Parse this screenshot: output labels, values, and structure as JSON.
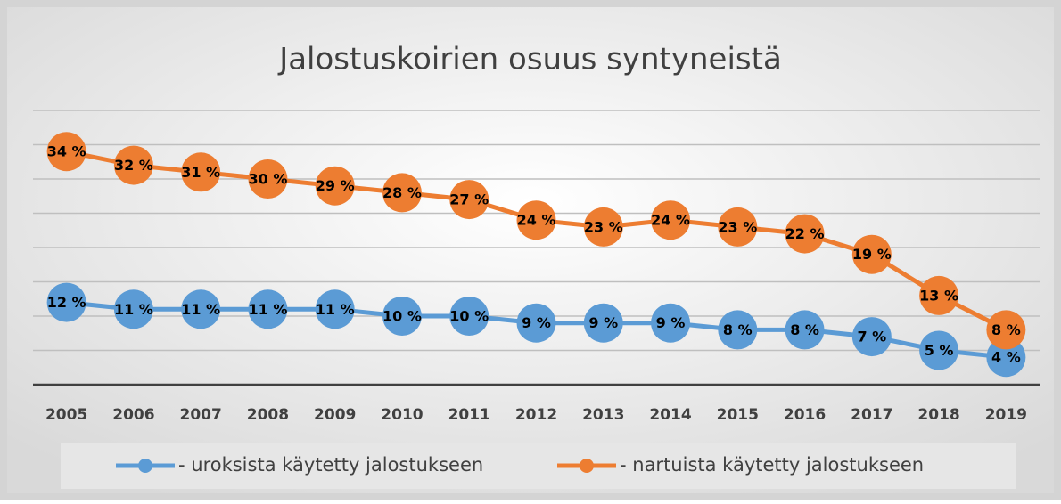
{
  "chart_data": {
    "type": "line",
    "title": "Jalostuskoirien osuus syntyneistä",
    "categories": [
      "2005",
      "2006",
      "2007",
      "2008",
      "2009",
      "2010",
      "2011",
      "2012",
      "2013",
      "2014",
      "2015",
      "2016",
      "2017",
      "2018",
      "2019"
    ],
    "series": [
      {
        "name": "- uroksista käytetty jalostukseen",
        "color": "#5b9bd5",
        "values": [
          12,
          11,
          11,
          11,
          11,
          10,
          10,
          9,
          9,
          9,
          8,
          8,
          7,
          5,
          4
        ],
        "value_labels": [
          "12 %",
          "11 %",
          "11 %",
          "11 %",
          "11 %",
          "10 %",
          "10 %",
          "9 %",
          "9 %",
          "9 %",
          "8 %",
          "8 %",
          "7 %",
          "5 %",
          "4 %"
        ]
      },
      {
        "name": "- nartuista käytetty jalostukseen",
        "color": "#ed7d31",
        "values": [
          34,
          32,
          31,
          30,
          29,
          28,
          27,
          24,
          23,
          24,
          23,
          22,
          19,
          13,
          8
        ],
        "value_labels": [
          "34 %",
          "32 %",
          "31 %",
          "30 %",
          "29 %",
          "28 %",
          "27 %",
          "24 %",
          "23 %",
          "24 %",
          "23 %",
          "22 %",
          "19 %",
          "13 %",
          "8 %"
        ]
      }
    ],
    "ylim": [
      0,
      40
    ],
    "yticks": [
      0,
      5,
      10,
      15,
      20,
      25,
      30,
      35,
      40
    ],
    "grid": true,
    "legend": "bottom"
  }
}
